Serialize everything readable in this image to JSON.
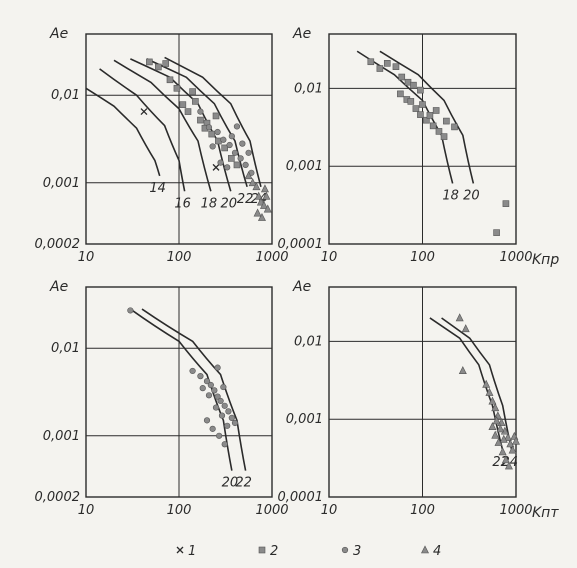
{
  "chart_data": [
    {
      "type": "scatter",
      "id": "A",
      "ylabel": "Ae",
      "xlabel": "",
      "x_scale": "log",
      "y_scale": "log",
      "xlim": [
        10,
        1000
      ],
      "ylim": [
        0.0002,
        0.05
      ],
      "x_ticks": [
        "10",
        "100",
        "1000"
      ],
      "y_ticks": [
        "0,01",
        "0,001",
        "0,0002"
      ],
      "curves": [
        {
          "label": "14",
          "points": [
            [
              10,
              0.012
            ],
            [
              20,
              0.0075
            ],
            [
              35,
              0.0042
            ],
            [
              55,
              0.0018
            ],
            [
              62,
              0.0012
            ]
          ]
        },
        {
          "label": "16",
          "points": [
            [
              14,
              0.02
            ],
            [
              35,
              0.01
            ],
            [
              70,
              0.0045
            ],
            [
              100,
              0.0018
            ],
            [
              115,
              0.0008
            ]
          ]
        },
        {
          "label": "18",
          "points": [
            [
              20,
              0.025
            ],
            [
              50,
              0.014
            ],
            [
              100,
              0.007
            ],
            [
              160,
              0.003
            ],
            [
              220,
              0.0008
            ]
          ]
        },
        {
          "label": "20",
          "points": [
            [
              30,
              0.026
            ],
            [
              80,
              0.016
            ],
            [
              160,
              0.008
            ],
            [
              260,
              0.003
            ],
            [
              360,
              0.0008
            ]
          ]
        },
        {
          "label": "22",
          "points": [
            [
              45,
              0.026
            ],
            [
              120,
              0.016
            ],
            [
              240,
              0.008
            ],
            [
              400,
              0.003
            ],
            [
              540,
              0.0009
            ]
          ]
        },
        {
          "label": "24",
          "points": [
            [
              70,
              0.027
            ],
            [
              180,
              0.016
            ],
            [
              360,
              0.008
            ],
            [
              580,
              0.003
            ],
            [
              760,
              0.0009
            ]
          ]
        }
      ],
      "series": [
        {
          "name": "1",
          "marker": "x",
          "points": [
            [
              42,
              0.0065
            ],
            [
              250,
              0.0015
            ]
          ]
        },
        {
          "name": "2",
          "marker": "square",
          "points": [
            [
              48,
              0.024
            ],
            [
              60,
              0.021
            ],
            [
              72,
              0.023
            ],
            [
              80,
              0.015
            ],
            [
              95,
              0.012
            ],
            [
              110,
              0.0078
            ],
            [
              125,
              0.0065
            ],
            [
              150,
              0.0085
            ],
            [
              170,
              0.0052
            ],
            [
              200,
              0.0048
            ],
            [
              225,
              0.0036
            ],
            [
              265,
              0.003
            ],
            [
              310,
              0.0025
            ],
            [
              365,
              0.0019
            ],
            [
              420,
              0.0016
            ],
            [
              250,
              0.0058
            ],
            [
              190,
              0.0042
            ],
            [
              140,
              0.011
            ]
          ]
        },
        {
          "name": "3",
          "marker": "circle",
          "points": [
            [
              170,
              0.0065
            ],
            [
              210,
              0.0043
            ],
            [
              260,
              0.0038
            ],
            [
              300,
              0.0031
            ],
            [
              350,
              0.0027
            ],
            [
              400,
              0.0022
            ],
            [
              460,
              0.0019
            ],
            [
              520,
              0.0016
            ],
            [
              600,
              0.0013
            ],
            [
              280,
              0.0017
            ],
            [
              370,
              0.0034
            ],
            [
              230,
              0.0026
            ],
            [
              330,
              0.0015
            ],
            [
              480,
              0.0028
            ],
            [
              560,
              0.0022
            ],
            [
              420,
              0.0044
            ]
          ]
        },
        {
          "name": "4",
          "marker": "triangle",
          "points": [
            [
              560,
              0.0012
            ],
            [
              620,
              0.001
            ],
            [
              680,
              0.0009
            ],
            [
              720,
              0.0007
            ],
            [
              760,
              0.0006
            ],
            [
              820,
              0.00055
            ],
            [
              870,
              0.0007
            ],
            [
              900,
              0.0005
            ],
            [
              780,
              0.0004
            ],
            [
              700,
              0.00045
            ],
            [
              840,
              0.00085
            ]
          ]
        }
      ]
    },
    {
      "type": "scatter",
      "id": "B",
      "ylabel": "Ae",
      "xlabel": "Kпр",
      "x_scale": "log",
      "y_scale": "log",
      "xlim": [
        10,
        1000
      ],
      "ylim": [
        0.0001,
        0.05
      ],
      "x_ticks": [
        "10",
        "100",
        "1000"
      ],
      "y_ticks": [
        "0,01",
        "0,001",
        "0,0001"
      ],
      "curves": [
        {
          "label": "18",
          "points": [
            [
              20,
              0.03
            ],
            [
              50,
              0.015
            ],
            [
              100,
              0.007
            ],
            [
              160,
              0.0025
            ],
            [
              210,
              0.0006
            ]
          ]
        },
        {
          "label": "20",
          "points": [
            [
              35,
              0.03
            ],
            [
              90,
              0.015
            ],
            [
              170,
              0.007
            ],
            [
              270,
              0.0025
            ],
            [
              350,
              0.0006
            ]
          ]
        }
      ],
      "series": [
        {
          "name": "2",
          "marker": "square",
          "points": [
            [
              28,
              0.022
            ],
            [
              35,
              0.018
            ],
            [
              42,
              0.021
            ],
            [
              52,
              0.019
            ],
            [
              60,
              0.014
            ],
            [
              70,
              0.012
            ],
            [
              80,
              0.011
            ],
            [
              58,
              0.0085
            ],
            [
              68,
              0.0072
            ],
            [
              85,
              0.0055
            ],
            [
              95,
              0.0046
            ],
            [
              110,
              0.0039
            ],
            [
              130,
              0.0033
            ],
            [
              150,
              0.0028
            ],
            [
              170,
              0.0024
            ],
            [
              100,
              0.0062
            ],
            [
              120,
              0.0045
            ],
            [
              140,
              0.0052
            ],
            [
              180,
              0.0038
            ],
            [
              220,
              0.0032
            ],
            [
              95,
              0.0095
            ],
            [
              75,
              0.0068
            ],
            [
              780,
              0.00033
            ],
            [
              620,
              0.00014
            ]
          ]
        }
      ]
    },
    {
      "type": "scatter",
      "id": "C",
      "ylabel": "Ae",
      "xlabel": "",
      "x_scale": "log",
      "y_scale": "log",
      "xlim": [
        10,
        1000
      ],
      "ylim": [
        0.0002,
        0.05
      ],
      "x_ticks": [
        "10",
        "100",
        "1000"
      ],
      "y_ticks": [
        "0,01",
        "0,001",
        "0,0002"
      ],
      "curves": [
        {
          "label": "20",
          "points": [
            [
              30,
              0.028
            ],
            [
              100,
              0.012
            ],
            [
              200,
              0.005
            ],
            [
              300,
              0.0015
            ],
            [
              370,
              0.0004
            ]
          ]
        },
        {
          "label": "22",
          "points": [
            [
              40,
              0.028
            ],
            [
              140,
              0.012
            ],
            [
              280,
              0.005
            ],
            [
              420,
              0.0015
            ],
            [
              520,
              0.0004
            ]
          ]
        }
      ],
      "series": [
        {
          "name": "3",
          "marker": "circle",
          "points": [
            [
              30,
              0.027
            ],
            [
              140,
              0.0055
            ],
            [
              170,
              0.0048
            ],
            [
              200,
              0.0042
            ],
            [
              220,
              0.0038
            ],
            [
              240,
              0.0033
            ],
            [
              260,
              0.0028
            ],
            [
              280,
              0.0025
            ],
            [
              310,
              0.0022
            ],
            [
              340,
              0.0019
            ],
            [
              370,
              0.0016
            ],
            [
              400,
              0.0014
            ],
            [
              180,
              0.0035
            ],
            [
              210,
              0.0029
            ],
            [
              250,
              0.0021
            ],
            [
              290,
              0.0017
            ],
            [
              330,
              0.0013
            ],
            [
              230,
              0.0012
            ],
            [
              270,
              0.001
            ],
            [
              310,
              0.0008
            ],
            [
              200,
              0.0015
            ],
            [
              260,
              0.006
            ],
            [
              300,
              0.0036
            ]
          ]
        }
      ]
    },
    {
      "type": "scatter",
      "id": "D",
      "ylabel": "Ae",
      "xlabel": "Kпт",
      "x_scale": "log",
      "y_scale": "log",
      "xlim": [
        10,
        1000
      ],
      "ylim": [
        0.0001,
        0.05
      ],
      "x_ticks": [
        "10",
        "100",
        "1000"
      ],
      "y_ticks": [
        "0,01",
        "0,001",
        "0,0001"
      ],
      "curves": [
        {
          "label": "22",
          "points": [
            [
              120,
              0.02
            ],
            [
              250,
              0.011
            ],
            [
              400,
              0.005
            ],
            [
              560,
              0.0015
            ],
            [
              720,
              0.0004
            ]
          ]
        },
        {
          "label": "24",
          "points": [
            [
              160,
              0.02
            ],
            [
              320,
              0.011
            ],
            [
              520,
              0.005
            ],
            [
              720,
              0.0015
            ],
            [
              900,
              0.0004
            ]
          ]
        }
      ],
      "series": [
        {
          "name": "4",
          "marker": "triangle",
          "points": [
            [
              250,
              0.02
            ],
            [
              290,
              0.0145
            ],
            [
              270,
              0.0042
            ],
            [
              480,
              0.0028
            ],
            [
              520,
              0.0022
            ],
            [
              560,
              0.0017
            ],
            [
              600,
              0.0014
            ],
            [
              640,
              0.0011
            ],
            [
              700,
              0.0009
            ],
            [
              760,
              0.0007
            ],
            [
              820,
              0.00058
            ],
            [
              870,
              0.00048
            ],
            [
              920,
              0.0004
            ],
            [
              650,
              0.0005
            ],
            [
              720,
              0.00038
            ],
            [
              780,
              0.0003
            ],
            [
              840,
              0.00025
            ],
            [
              600,
              0.00062
            ],
            [
              680,
              0.00075
            ],
            [
              560,
              0.0008
            ],
            [
              740,
              0.00055
            ],
            [
              960,
              0.0006
            ],
            [
              1000,
              0.00052
            ],
            [
              620,
              0.00095
            ]
          ]
        }
      ]
    }
  ],
  "legend": [
    {
      "marker": "x",
      "label": "1"
    },
    {
      "marker": "square",
      "label": "2"
    },
    {
      "marker": "circle",
      "label": "3"
    },
    {
      "marker": "triangle",
      "label": "4"
    }
  ],
  "colors": {
    "ink": "#2b2b2b",
    "paper": "#f4f3ef",
    "marker": "#8a8a8a"
  }
}
